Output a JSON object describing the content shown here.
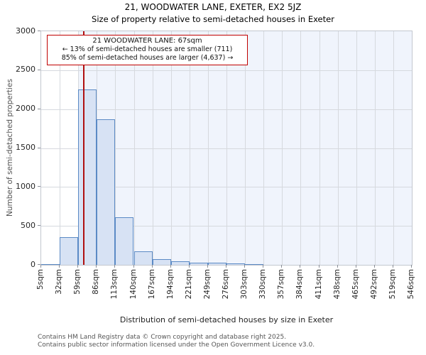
{
  "header": {
    "title": "21, WOODWATER LANE, EXETER, EX2 5JZ",
    "subtitle": "Size of property relative to semi-detached houses in Exeter"
  },
  "annotation": {
    "line1": "21 WOODWATER LANE: 67sqm",
    "line2": "← 13% of semi-detached houses are smaller (711)",
    "line3": "85% of semi-detached houses are larger (4,637) →"
  },
  "footer": {
    "line1": "Contains HM Land Registry data © Crown copyright and database right 2025.",
    "line2": "Contains public sector information licensed under the Open Government Licence v3.0."
  },
  "chart_data": {
    "type": "bar",
    "title": "21, WOODWATER LANE, EXETER, EX2 5JZ",
    "subtitle": "Size of property relative to semi-detached houses in Exeter",
    "xlabel": "Distribution of semi-detached houses by size in Exeter",
    "ylabel": "Number of semi-detached properties",
    "bin_edges_sqm": [
      5,
      32,
      59,
      86,
      113,
      140,
      167,
      194,
      221,
      249,
      276,
      303,
      330,
      357,
      384,
      411,
      438,
      465,
      492,
      519,
      546
    ],
    "x_tick_labels": [
      "5sqm",
      "32sqm",
      "59sqm",
      "86sqm",
      "113sqm",
      "140sqm",
      "167sqm",
      "194sqm",
      "221sqm",
      "249sqm",
      "276sqm",
      "303sqm",
      "330sqm",
      "357sqm",
      "384sqm",
      "411sqm",
      "438sqm",
      "465sqm",
      "492sqm",
      "519sqm",
      "546sqm"
    ],
    "values": [
      12,
      355,
      2250,
      1870,
      610,
      175,
      70,
      45,
      30,
      25,
      15,
      10,
      0,
      0,
      0,
      0,
      0,
      0,
      0,
      0
    ],
    "ylim": [
      0,
      3000
    ],
    "y_ticks": [
      0,
      500,
      1000,
      1500,
      2000,
      2500,
      3000
    ],
    "grid": true,
    "legend": "none",
    "marker_value_sqm": 67,
    "shade_from_sqm": 59,
    "colors": {
      "bar_fill": "#d7e2f4",
      "bar_border": "#5b8ac5",
      "marker_line": "#b01010",
      "annotation_border": "#c00000",
      "shade": "#f0f4fc",
      "grid": "#d6d9de",
      "spine": "#c3c7cf"
    }
  }
}
